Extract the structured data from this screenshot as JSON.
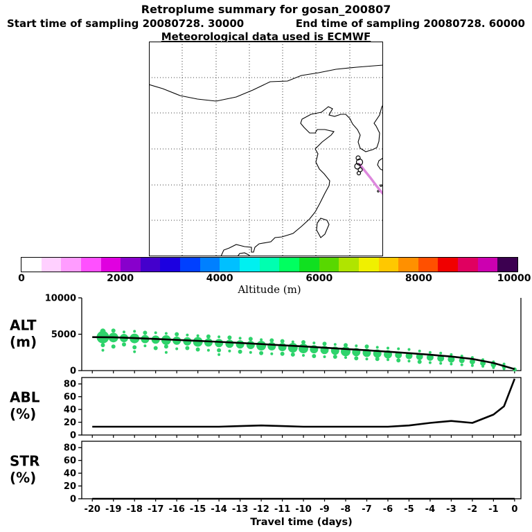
{
  "header": {
    "title": "Retroplume summary for gosan_200807",
    "sampling_start": "Start time of sampling 20080728. 30000",
    "sampling_end": "End time of sampling 20080728. 60000",
    "met_line": "Meteorological data used is ECMWF"
  },
  "colorbar": {
    "label": "Altitude (m)",
    "tick_labels": [
      "0",
      "2000",
      "4000",
      "6000",
      "8000",
      "10000"
    ],
    "colors": [
      "#ffffff",
      "#ffd0ff",
      "#ff9cff",
      "#ff50ff",
      "#e000e0",
      "#8800cc",
      "#4400cc",
      "#1c00e0",
      "#0040ff",
      "#0080ff",
      "#00c0ff",
      "#00f0f0",
      "#00ffb0",
      "#00ff60",
      "#10e020",
      "#58d800",
      "#b0e400",
      "#f0f000",
      "#ffc800",
      "#ff9000",
      "#ff5000",
      "#f00000",
      "#e00060",
      "#cc00b0",
      "#3c0050"
    ]
  },
  "map": {
    "trajectory_color": "#dd88dd",
    "coast_color": "#000000"
  },
  "chart_data": {
    "type": "multi-panel-timeseries",
    "xlabel": "Travel time (days)",
    "xlim": [
      -20.5,
      0.3
    ],
    "xticks": [
      -20,
      -19,
      -18,
      -17,
      -16,
      -15,
      -14,
      -13,
      -12,
      -11,
      -10,
      -9,
      -8,
      -7,
      -6,
      -5,
      -4,
      -3,
      -2,
      -1,
      0
    ],
    "panels": [
      {
        "name": "ALT",
        "ylabel": [
          "ALT",
          "(m)"
        ],
        "ylim": [
          0,
          10000
        ],
        "yticks": [
          0,
          5000,
          10000
        ],
        "bubble_color": "#2ed36b",
        "bubbles": [
          {
            "t": -19.5,
            "p": [
              [
                4600,
                9
              ],
              [
                5400,
                4
              ],
              [
                3500,
                3
              ],
              [
                2800,
                2
              ]
            ]
          },
          {
            "t": -19,
            "p": [
              [
                4550,
                7
              ],
              [
                5500,
                3
              ],
              [
                3300,
                3
              ]
            ]
          },
          {
            "t": -18.5,
            "p": [
              [
                4480,
                6
              ],
              [
                3600,
                3
              ],
              [
                5300,
                2
              ]
            ]
          },
          {
            "t": -18,
            "p": [
              [
                4420,
                7
              ],
              [
                3200,
                3
              ],
              [
                5400,
                2
              ],
              [
                2600,
                2
              ]
            ]
          },
          {
            "t": -17.5,
            "p": [
              [
                4330,
                6
              ],
              [
                5200,
                3
              ],
              [
                3400,
                2
              ]
            ]
          },
          {
            "t": -17,
            "p": [
              [
                4260,
                6
              ],
              [
                3100,
                3
              ],
              [
                5200,
                2
              ]
            ]
          },
          {
            "t": -16.5,
            "p": [
              [
                4200,
                7
              ],
              [
                3300,
                3
              ],
              [
                5100,
                2
              ],
              [
                2500,
                2
              ]
            ]
          },
          {
            "t": -16,
            "p": [
              [
                4120,
                6
              ],
              [
                5000,
                3
              ],
              [
                3000,
                2
              ]
            ]
          },
          {
            "t": -15.5,
            "p": [
              [
                4030,
                6
              ],
              [
                3100,
                3
              ],
              [
                4900,
                2
              ]
            ]
          },
          {
            "t": -15,
            "p": [
              [
                3950,
                7
              ],
              [
                2900,
                3
              ],
              [
                4800,
                2
              ]
            ]
          },
          {
            "t": -14.5,
            "p": [
              [
                3870,
                6
              ],
              [
                4700,
                3
              ],
              [
                2800,
                2
              ]
            ]
          },
          {
            "t": -14,
            "p": [
              [
                3780,
                6
              ],
              [
                2800,
                3
              ],
              [
                4650,
                2
              ],
              [
                2200,
                2
              ]
            ]
          },
          {
            "t": -13.5,
            "p": [
              [
                3700,
                6
              ],
              [
                4550,
                3
              ],
              [
                2700,
                2
              ]
            ]
          },
          {
            "t": -13,
            "p": [
              [
                3610,
                6
              ],
              [
                2600,
                3
              ],
              [
                4450,
                2
              ]
            ]
          },
          {
            "t": -12.5,
            "p": [
              [
                3520,
                6
              ],
              [
                4350,
                3
              ],
              [
                2500,
                2
              ]
            ]
          },
          {
            "t": -12,
            "p": [
              [
                3430,
                7
              ],
              [
                2400,
                3
              ],
              [
                4250,
                2
              ]
            ]
          },
          {
            "t": -11.5,
            "p": [
              [
                3340,
                6
              ],
              [
                4150,
                3
              ],
              [
                2300,
                2
              ]
            ]
          },
          {
            "t": -11,
            "p": [
              [
                3240,
                6
              ],
              [
                2300,
                3
              ],
              [
                4050,
                3
              ]
            ]
          },
          {
            "t": -10.5,
            "p": [
              [
                3140,
                7
              ],
              [
                2200,
                3
              ],
              [
                3950,
                2
              ]
            ]
          },
          {
            "t": -10,
            "p": [
              [
                3040,
                7
              ],
              [
                3900,
                3
              ],
              [
                2100,
                2
              ]
            ]
          },
          {
            "t": -9.5,
            "p": [
              [
                2940,
                6
              ],
              [
                2000,
                3
              ],
              [
                3800,
                2
              ]
            ]
          },
          {
            "t": -9,
            "p": [
              [
                2840,
                6
              ],
              [
                3700,
                3
              ],
              [
                1900,
                2
              ]
            ]
          },
          {
            "t": -8.5,
            "p": [
              [
                2740,
                6
              ],
              [
                1900,
                3
              ],
              [
                3600,
                2
              ]
            ]
          },
          {
            "t": -8,
            "p": [
              [
                2640,
                7
              ],
              [
                3500,
                3
              ],
              [
                1800,
                2
              ]
            ]
          },
          {
            "t": -7.5,
            "p": [
              [
                2540,
                6
              ],
              [
                1700,
                3
              ],
              [
                3400,
                2
              ]
            ]
          },
          {
            "t": -7,
            "p": [
              [
                2440,
                6
              ],
              [
                3300,
                3
              ],
              [
                1600,
                2
              ]
            ]
          },
          {
            "t": -6.5,
            "p": [
              [
                2340,
                6
              ],
              [
                1600,
                3
              ],
              [
                3200,
                2
              ]
            ]
          },
          {
            "t": -6,
            "p": [
              [
                2240,
                6
              ],
              [
                3100,
                2
              ],
              [
                1500,
                2
              ]
            ]
          },
          {
            "t": -5.5,
            "p": [
              [
                2140,
                5
              ],
              [
                1400,
                3
              ],
              [
                3000,
                2
              ]
            ]
          },
          {
            "t": -5,
            "p": [
              [
                2040,
                5
              ],
              [
                2900,
                2
              ],
              [
                1300,
                2
              ]
            ]
          },
          {
            "t": -4.5,
            "p": [
              [
                1930,
                5
              ],
              [
                1200,
                3
              ],
              [
                2700,
                2
              ]
            ]
          },
          {
            "t": -4,
            "p": [
              [
                1820,
                5
              ],
              [
                2500,
                2
              ],
              [
                1100,
                2
              ]
            ]
          },
          {
            "t": -3.5,
            "p": [
              [
                1700,
                5
              ],
              [
                1000,
                2
              ],
              [
                2400,
                2
              ]
            ]
          },
          {
            "t": -3,
            "p": [
              [
                1560,
                5
              ],
              [
                2200,
                2
              ],
              [
                900,
                2
              ]
            ]
          },
          {
            "t": -2.5,
            "p": [
              [
                1400,
                4
              ],
              [
                800,
                2
              ],
              [
                2000,
                2
              ]
            ]
          },
          {
            "t": -2,
            "p": [
              [
                1230,
                4
              ],
              [
                1800,
                2
              ],
              [
                700,
                2
              ]
            ]
          },
          {
            "t": -1.5,
            "p": [
              [
                1030,
                4
              ],
              [
                600,
                2
              ],
              [
                1500,
                2
              ]
            ]
          },
          {
            "t": -1,
            "p": [
              [
                820,
                4
              ],
              [
                1200,
                2
              ],
              [
                400,
                2
              ]
            ]
          },
          {
            "t": -0.5,
            "p": [
              [
                520,
                3
              ],
              [
                900,
                2
              ],
              [
                250,
                2
              ]
            ]
          },
          {
            "t": 0,
            "p": [
              [
                150,
                3
              ]
            ]
          }
        ],
        "line": {
          "x": [
            -20,
            -19,
            -18,
            -17,
            -16,
            -15,
            -14,
            -13,
            -12,
            -11,
            -10,
            -9,
            -8,
            -7,
            -6,
            -5,
            -4,
            -3,
            -2,
            -1,
            0
          ],
          "y": [
            4600,
            4580,
            4470,
            4350,
            4220,
            4090,
            3950,
            3800,
            3650,
            3490,
            3320,
            3150,
            2970,
            2790,
            2600,
            2400,
            2180,
            1930,
            1600,
            1050,
            200
          ]
        }
      },
      {
        "name": "ABL",
        "ylabel": [
          "ABL",
          "(%)"
        ],
        "ylim": [
          0,
          90
        ],
        "yticks": [
          0,
          20,
          40,
          60,
          80
        ],
        "line": {
          "x": [
            -20,
            -19,
            -18,
            -17,
            -16,
            -15,
            -14,
            -13,
            -12,
            -11,
            -10,
            -9,
            -8,
            -7,
            -6,
            -5,
            -4,
            -3,
            -2,
            -1,
            -0.5,
            0
          ],
          "y": [
            13,
            13,
            13,
            13,
            13,
            13,
            13,
            14,
            15,
            14,
            13,
            13,
            13,
            13,
            13,
            15,
            19,
            22,
            19,
            32,
            45,
            88
          ]
        }
      },
      {
        "name": "STR",
        "ylabel": [
          "STR",
          "(%)"
        ],
        "ylim": [
          0,
          90
        ],
        "yticks": [
          0,
          20,
          40,
          60,
          80
        ],
        "line": {
          "x": [
            -20,
            0
          ],
          "y": [
            0,
            0
          ]
        }
      }
    ]
  }
}
